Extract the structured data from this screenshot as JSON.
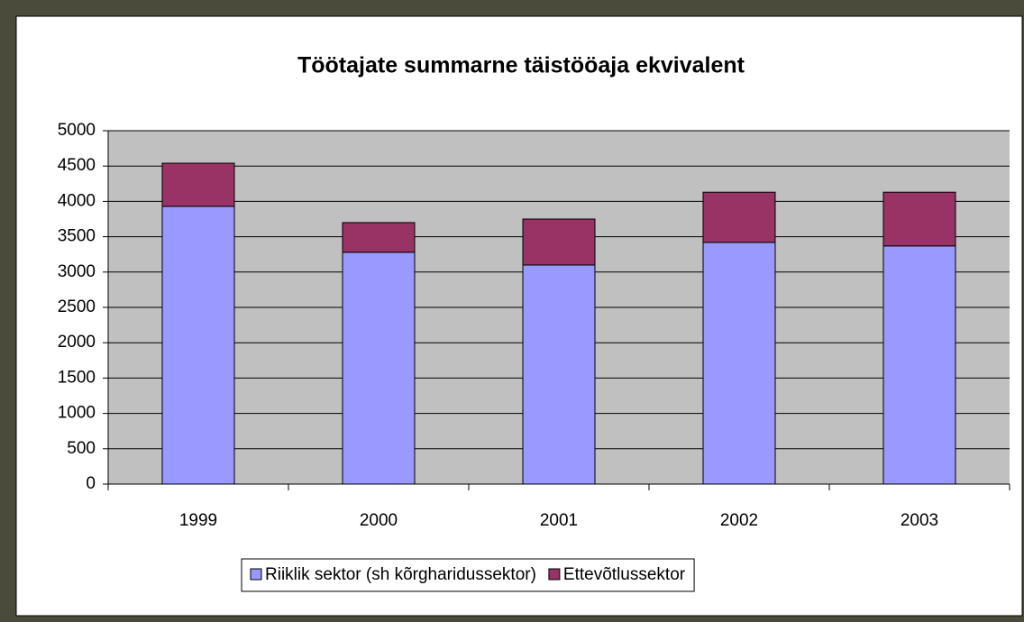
{
  "chart_data": {
    "type": "stacked_bar",
    "title": "Töötajate summarne täistööaja ekvivalent",
    "categories": [
      "1999",
      "2000",
      "2001",
      "2002",
      "2003"
    ],
    "series": [
      {
        "name": "Riiklik sektor (sh kõrgharidussektor)",
        "color": "#9999ff",
        "values": [
          3930,
          3280,
          3100,
          3420,
          3370
        ]
      },
      {
        "name": "Ettevõtlussektor",
        "color": "#993366",
        "values": [
          610,
          420,
          650,
          710,
          760
        ]
      }
    ],
    "ylim": [
      0,
      5000
    ],
    "yticks": [
      0,
      500,
      1000,
      1500,
      2000,
      2500,
      3000,
      3500,
      4000,
      4500,
      5000
    ],
    "grid": true,
    "legend": "bottom"
  }
}
